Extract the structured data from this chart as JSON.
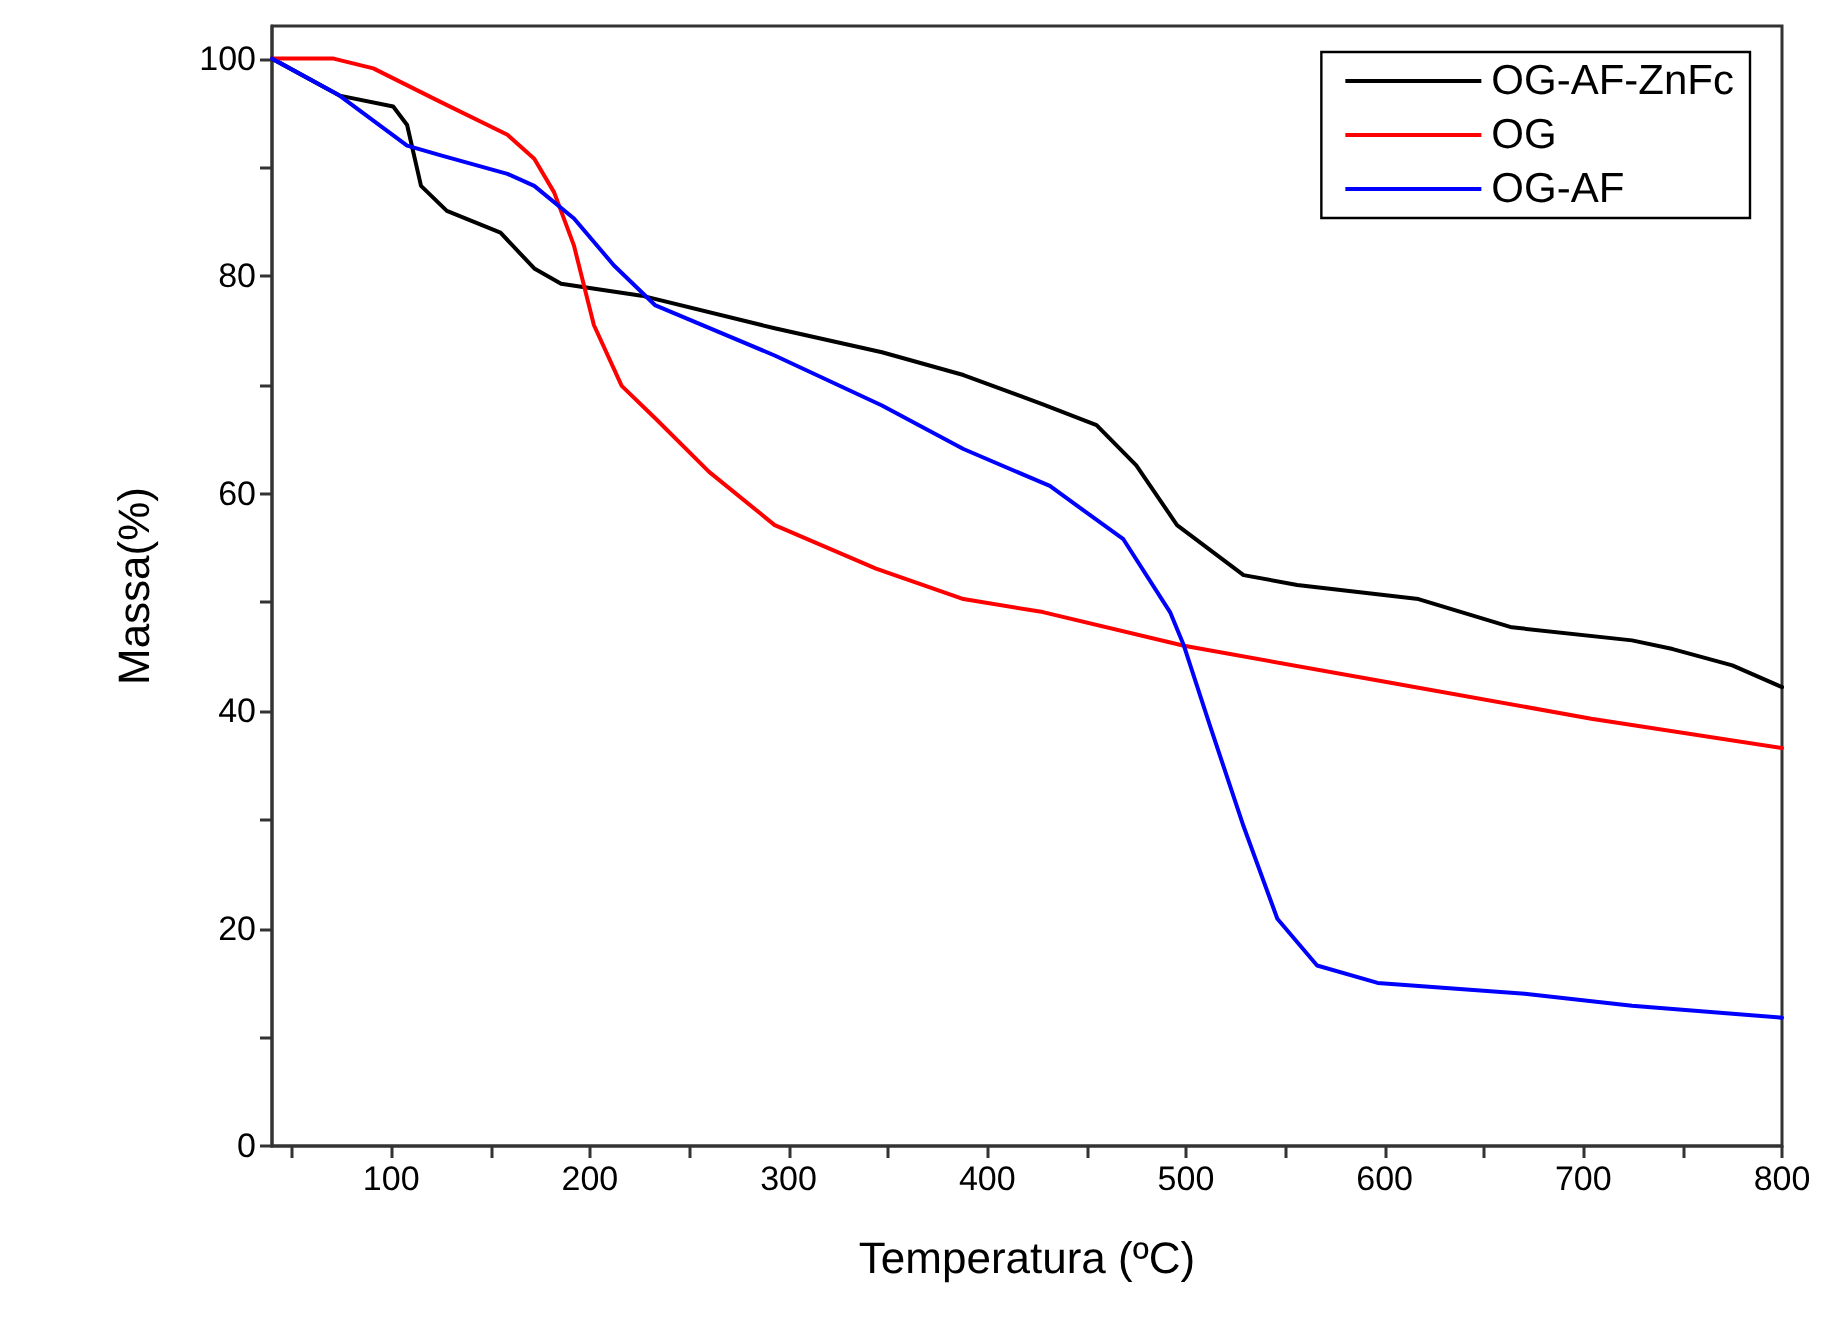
{
  "chart_data": {
    "type": "line",
    "xlabel": "Temperatura (ºC)",
    "ylabel": "Massa(%)",
    "xlim": [
      40,
      800
    ],
    "ylim": [
      0,
      103
    ],
    "xticks": [
      {
        "value": 50,
        "label": null
      },
      100,
      {
        "value": 150,
        "label": null
      },
      200,
      {
        "value": 250,
        "label": null
      },
      300,
      {
        "value": 350,
        "label": null
      },
      400,
      {
        "value": 450,
        "label": null
      },
      500,
      {
        "value": 550,
        "label": null
      },
      600,
      {
        "value": 650,
        "label": null
      },
      700,
      {
        "value": 750,
        "label": null
      },
      800
    ],
    "yticks": [
      0,
      {
        "value": 10,
        "label": null
      },
      20,
      {
        "value": 30,
        "label": null
      },
      40,
      {
        "value": 50,
        "label": null
      },
      60,
      {
        "value": 70,
        "label": null
      },
      80,
      {
        "value": 90,
        "label": null
      },
      100
    ],
    "grid": false,
    "legend": "top right",
    "series": [
      {
        "name": "OG-AF-ZnFc",
        "color": "#000000",
        "x": [
          40,
          74,
          101,
          108,
          115,
          128,
          155,
          172,
          185.5,
          226,
          293,
          347,
          388,
          428,
          455,
          475,
          495.5,
          529,
          556,
          617,
          664,
          724.5,
          745,
          775,
          800
        ],
        "values": [
          100,
          96.6,
          95.6,
          93.9,
          88.3,
          86.0,
          84.0,
          80.7,
          79.3,
          78.2,
          75.2,
          73.0,
          70.9,
          68.2,
          66.3,
          62.6,
          57.1,
          52.5,
          51.6,
          50.3,
          47.7,
          46.5,
          45.7,
          44.2,
          42.2
        ]
      },
      {
        "name": "OG",
        "color": "#ff0000",
        "x": [
          40,
          71,
          91,
          125,
          158.5,
          172,
          182,
          192,
          202,
          216,
          233,
          260,
          293,
          344,
          388,
          428,
          499,
          603,
          704,
          800
        ],
        "values": [
          100,
          100,
          99.1,
          96.0,
          93.0,
          90.8,
          87.7,
          82.8,
          75.5,
          69.9,
          66.9,
          62.0,
          57.1,
          53.1,
          50.3,
          49.1,
          46.0,
          42.6,
          39.3,
          36.6
        ]
      },
      {
        "name": "OG-AF",
        "color": "#0000ff",
        "x": [
          40,
          74,
          108,
          125,
          158.5,
          172,
          192,
          212,
          233,
          293,
          347,
          388,
          431.5,
          468.5,
          492,
          499,
          512,
          529,
          546,
          566,
          596.5,
          670.5,
          724.5,
          800
        ],
        "values": [
          100,
          96.6,
          92.0,
          91.1,
          89.4,
          88.3,
          85.3,
          81.0,
          77.3,
          72.7,
          68.1,
          64.1,
          60.7,
          55.8,
          49.1,
          46.0,
          38.7,
          29.4,
          20.9,
          16.6,
          15.0,
          14.0,
          12.9,
          11.8
        ]
      }
    ]
  }
}
